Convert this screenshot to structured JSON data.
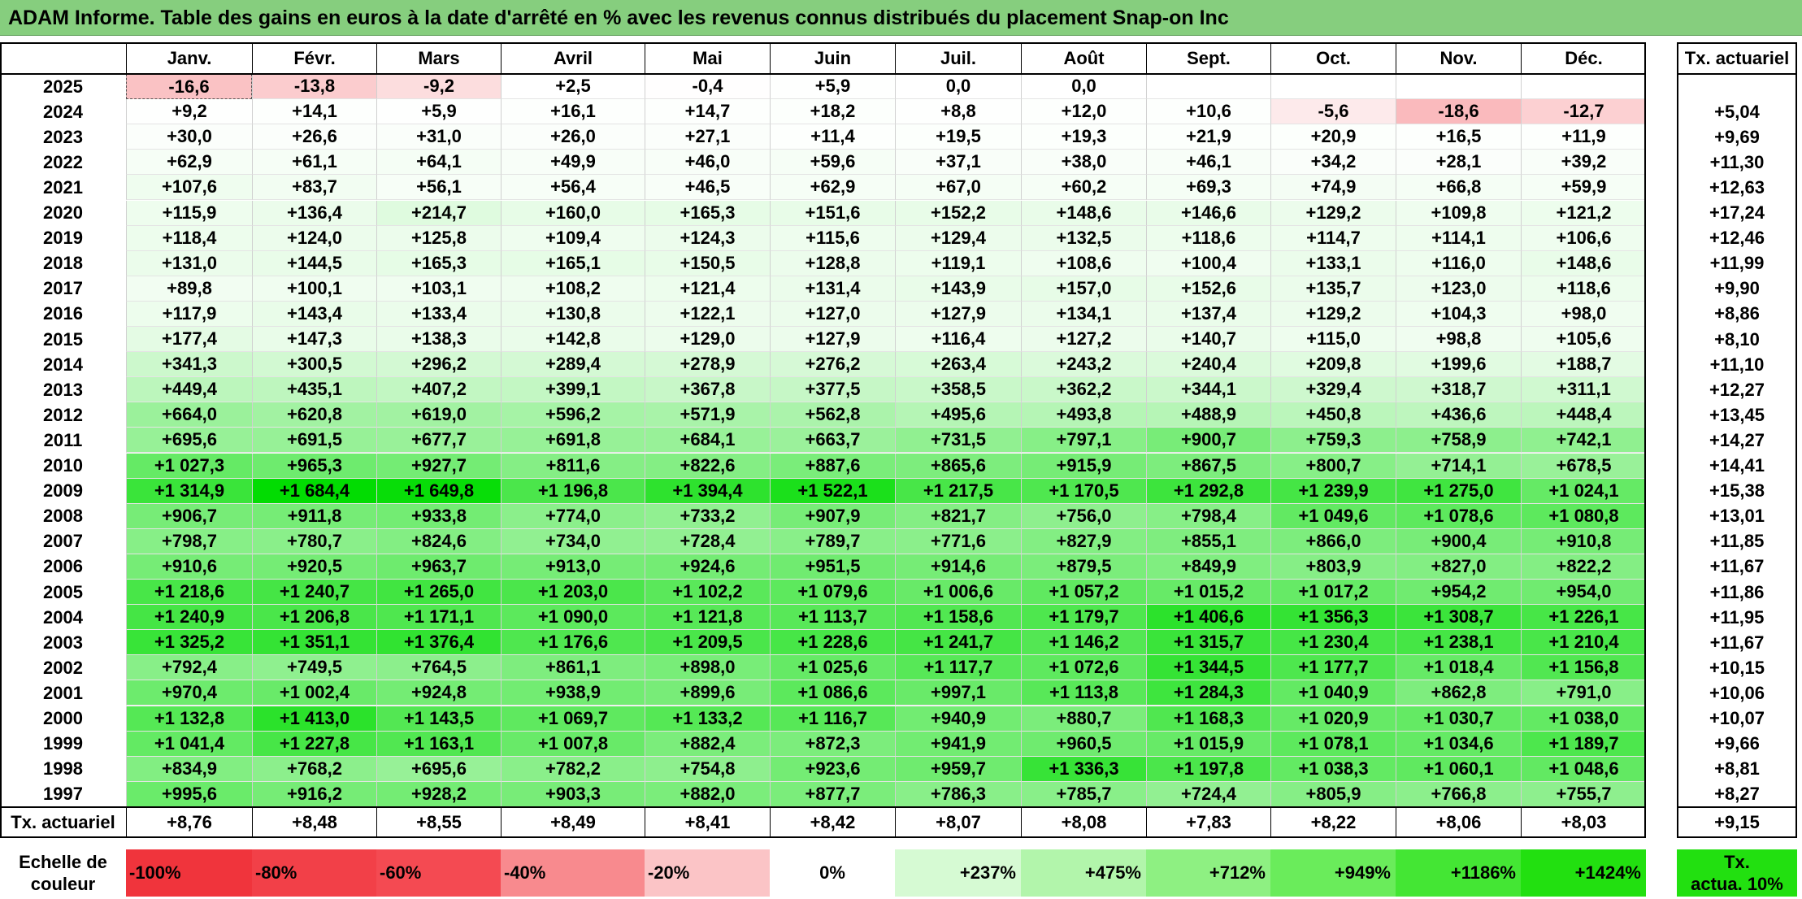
{
  "title": "ADAM Informe. Table des gains en euros à la date d'arrêté en % avec les revenus connus distribués du placement Snap-on Inc",
  "months": [
    "Janv.",
    "Févr.",
    "Mars",
    "Avril",
    "Mai",
    "Juin",
    "Juil.",
    "Août",
    "Sept.",
    "Oct.",
    "Nov.",
    "Déc."
  ],
  "rate_header": "Tx. actuariel",
  "rows": [
    {
      "year": "2025",
      "values": [
        "-16,6",
        "-13,8",
        "-9,2",
        "+2,5",
        "-0,4",
        "+5,9",
        "0,0",
        "0,0",
        "",
        "",
        "",
        ""
      ],
      "rate": ""
    },
    {
      "year": "2024",
      "values": [
        "+9,2",
        "+14,1",
        "+5,9",
        "+16,1",
        "+14,7",
        "+18,2",
        "+8,8",
        "+12,0",
        "+10,6",
        "-5,6",
        "-18,6",
        "-12,7"
      ],
      "rate": "+5,04"
    },
    {
      "year": "2023",
      "values": [
        "+30,0",
        "+26,6",
        "+31,0",
        "+26,0",
        "+27,1",
        "+11,4",
        "+19,5",
        "+19,3",
        "+21,9",
        "+20,9",
        "+16,5",
        "+11,9"
      ],
      "rate": "+9,69"
    },
    {
      "year": "2022",
      "values": [
        "+62,9",
        "+61,1",
        "+64,1",
        "+49,9",
        "+46,0",
        "+59,6",
        "+37,1",
        "+38,0",
        "+46,1",
        "+34,2",
        "+28,1",
        "+39,2"
      ],
      "rate": "+11,30"
    },
    {
      "year": "2021",
      "values": [
        "+107,6",
        "+83,7",
        "+56,1",
        "+56,4",
        "+46,5",
        "+62,9",
        "+67,0",
        "+60,2",
        "+69,3",
        "+74,9",
        "+66,8",
        "+59,9"
      ],
      "rate": "+12,63"
    },
    {
      "year": "2020",
      "values": [
        "+115,9",
        "+136,4",
        "+214,7",
        "+160,0",
        "+165,3",
        "+151,6",
        "+152,2",
        "+148,6",
        "+146,6",
        "+129,2",
        "+109,8",
        "+121,2"
      ],
      "rate": "+17,24"
    },
    {
      "year": "2019",
      "values": [
        "+118,4",
        "+124,0",
        "+125,8",
        "+109,4",
        "+124,3",
        "+115,6",
        "+129,4",
        "+132,5",
        "+118,6",
        "+114,7",
        "+114,1",
        "+106,6"
      ],
      "rate": "+12,46"
    },
    {
      "year": "2018",
      "values": [
        "+131,0",
        "+144,5",
        "+165,3",
        "+165,1",
        "+150,5",
        "+128,8",
        "+119,1",
        "+108,6",
        "+100,4",
        "+133,1",
        "+116,0",
        "+148,6"
      ],
      "rate": "+11,99"
    },
    {
      "year": "2017",
      "values": [
        "+89,8",
        "+100,1",
        "+103,1",
        "+108,2",
        "+121,4",
        "+131,4",
        "+143,9",
        "+157,0",
        "+152,6",
        "+135,7",
        "+123,0",
        "+118,6"
      ],
      "rate": "+9,90"
    },
    {
      "year": "2016",
      "values": [
        "+117,9",
        "+143,4",
        "+133,4",
        "+130,8",
        "+122,1",
        "+127,0",
        "+127,9",
        "+134,1",
        "+137,4",
        "+129,2",
        "+104,3",
        "+98,0"
      ],
      "rate": "+8,86"
    },
    {
      "year": "2015",
      "values": [
        "+177,4",
        "+147,3",
        "+138,3",
        "+142,8",
        "+129,0",
        "+127,9",
        "+116,4",
        "+127,2",
        "+140,7",
        "+115,0",
        "+98,8",
        "+105,6"
      ],
      "rate": "+8,10"
    },
    {
      "year": "2014",
      "values": [
        "+341,3",
        "+300,5",
        "+296,2",
        "+289,4",
        "+278,9",
        "+276,2",
        "+263,4",
        "+243,2",
        "+240,4",
        "+209,8",
        "+199,6",
        "+188,7"
      ],
      "rate": "+11,10"
    },
    {
      "year": "2013",
      "values": [
        "+449,4",
        "+435,1",
        "+407,2",
        "+399,1",
        "+367,8",
        "+377,5",
        "+358,5",
        "+362,2",
        "+344,1",
        "+329,4",
        "+318,7",
        "+311,1"
      ],
      "rate": "+12,27"
    },
    {
      "year": "2012",
      "values": [
        "+664,0",
        "+620,8",
        "+619,0",
        "+596,2",
        "+571,9",
        "+562,8",
        "+495,6",
        "+493,8",
        "+488,9",
        "+450,8",
        "+436,6",
        "+448,4"
      ],
      "rate": "+13,45"
    },
    {
      "year": "2011",
      "values": [
        "+695,6",
        "+691,5",
        "+677,7",
        "+691,8",
        "+684,1",
        "+663,7",
        "+731,5",
        "+797,1",
        "+900,7",
        "+759,3",
        "+758,9",
        "+742,1"
      ],
      "rate": "+14,27"
    },
    {
      "year": "2010",
      "values": [
        "+1 027,3",
        "+965,3",
        "+927,7",
        "+811,6",
        "+822,6",
        "+887,6",
        "+865,6",
        "+915,9",
        "+867,5",
        "+800,7",
        "+714,1",
        "+678,5"
      ],
      "rate": "+14,41"
    },
    {
      "year": "2009",
      "values": [
        "+1 314,9",
        "+1 684,4",
        "+1 649,8",
        "+1 196,8",
        "+1 394,4",
        "+1 522,1",
        "+1 217,5",
        "+1 170,5",
        "+1 292,8",
        "+1 239,9",
        "+1 275,0",
        "+1 024,1"
      ],
      "rate": "+15,38"
    },
    {
      "year": "2008",
      "values": [
        "+906,7",
        "+911,8",
        "+933,8",
        "+774,0",
        "+733,2",
        "+907,9",
        "+821,7",
        "+756,0",
        "+798,4",
        "+1 049,6",
        "+1 078,6",
        "+1 080,8"
      ],
      "rate": "+13,01"
    },
    {
      "year": "2007",
      "values": [
        "+798,7",
        "+780,7",
        "+824,6",
        "+734,0",
        "+728,4",
        "+789,7",
        "+771,6",
        "+827,9",
        "+855,1",
        "+866,0",
        "+900,4",
        "+910,8"
      ],
      "rate": "+11,85"
    },
    {
      "year": "2006",
      "values": [
        "+910,6",
        "+920,5",
        "+963,7",
        "+913,0",
        "+924,6",
        "+951,5",
        "+914,6",
        "+879,5",
        "+849,9",
        "+803,9",
        "+827,0",
        "+822,2"
      ],
      "rate": "+11,67"
    },
    {
      "year": "2005",
      "values": [
        "+1 218,6",
        "+1 240,7",
        "+1 265,0",
        "+1 203,0",
        "+1 102,2",
        "+1 079,6",
        "+1 006,6",
        "+1 057,2",
        "+1 015,2",
        "+1 017,2",
        "+954,2",
        "+954,0"
      ],
      "rate": "+11,86"
    },
    {
      "year": "2004",
      "values": [
        "+1 240,9",
        "+1 206,8",
        "+1 171,1",
        "+1 090,0",
        "+1 121,8",
        "+1 113,7",
        "+1 158,6",
        "+1 179,7",
        "+1 406,6",
        "+1 356,3",
        "+1 308,7",
        "+1 226,1"
      ],
      "rate": "+11,95"
    },
    {
      "year": "2003",
      "values": [
        "+1 325,2",
        "+1 351,1",
        "+1 376,4",
        "+1 176,6",
        "+1 209,5",
        "+1 228,6",
        "+1 241,7",
        "+1 146,2",
        "+1 315,7",
        "+1 230,4",
        "+1 238,1",
        "+1 210,4"
      ],
      "rate": "+11,67"
    },
    {
      "year": "2002",
      "values": [
        "+792,4",
        "+749,5",
        "+764,5",
        "+861,1",
        "+898,0",
        "+1 025,6",
        "+1 117,7",
        "+1 072,6",
        "+1 344,5",
        "+1 177,7",
        "+1 018,4",
        "+1 156,8"
      ],
      "rate": "+10,15"
    },
    {
      "year": "2001",
      "values": [
        "+970,4",
        "+1 002,4",
        "+924,8",
        "+938,9",
        "+899,6",
        "+1 086,6",
        "+997,1",
        "+1 113,8",
        "+1 284,3",
        "+1 040,9",
        "+862,8",
        "+791,0"
      ],
      "rate": "+10,06"
    },
    {
      "year": "2000",
      "values": [
        "+1 132,8",
        "+1 413,0",
        "+1 143,5",
        "+1 069,7",
        "+1 133,2",
        "+1 116,7",
        "+940,9",
        "+880,7",
        "+1 168,3",
        "+1 020,9",
        "+1 030,7",
        "+1 038,0"
      ],
      "rate": "+10,07"
    },
    {
      "year": "1999",
      "values": [
        "+1 041,4",
        "+1 227,8",
        "+1 163,1",
        "+1 007,8",
        "+882,4",
        "+872,3",
        "+941,9",
        "+960,5",
        "+1 015,9",
        "+1 078,1",
        "+1 034,6",
        "+1 189,7"
      ],
      "rate": "+9,66"
    },
    {
      "year": "1998",
      "values": [
        "+834,9",
        "+768,2",
        "+695,6",
        "+782,2",
        "+754,8",
        "+923,6",
        "+959,7",
        "+1 336,3",
        "+1 197,8",
        "+1 038,3",
        "+1 060,1",
        "+1 048,6"
      ],
      "rate": "+8,81"
    },
    {
      "year": "1997",
      "values": [
        "+995,6",
        "+916,2",
        "+928,2",
        "+903,3",
        "+882,0",
        "+877,7",
        "+786,3",
        "+785,7",
        "+724,4",
        "+805,9",
        "+766,8",
        "+755,7"
      ],
      "rate": "+8,27"
    }
  ],
  "footer": {
    "label": "Tx. actuariel",
    "values": [
      "+8,76",
      "+8,48",
      "+8,55",
      "+8,49",
      "+8,41",
      "+8,42",
      "+8,07",
      "+8,08",
      "+7,83",
      "+8,22",
      "+8,06",
      "+8,03"
    ],
    "total": "+9,15"
  },
  "legend": {
    "title_line1": "Echelle de",
    "title_line2": "couleur",
    "steps": [
      {
        "label": "-100%",
        "color": "#f0343c"
      },
      {
        "label": "-80%",
        "color": "#f24048"
      },
      {
        "label": "-60%",
        "color": "#f44a52"
      },
      {
        "label": "-40%",
        "color": "#f88a8e"
      },
      {
        "label": "-20%",
        "color": "#fbc4c6"
      },
      {
        "label": "0%",
        "color": "#ffffff"
      },
      {
        "label": "+237%",
        "color": "#d6fad3"
      },
      {
        "label": "+475%",
        "color": "#b2f5ab"
      },
      {
        "label": "+712%",
        "color": "#8ef082"
      },
      {
        "label": "+949%",
        "color": "#6aec5b"
      },
      {
        "label": "+1186%",
        "color": "#44e634"
      },
      {
        "label": "+1424%",
        "color": "#22e010"
      }
    ],
    "rate_line1": "Tx.",
    "rate_line2": "actua. 10%",
    "rate_color": "#22e010"
  },
  "colors": {
    "title_bg": "#86ce7e",
    "max_positive": "#00dc00",
    "max_negative": "#f0343c"
  }
}
